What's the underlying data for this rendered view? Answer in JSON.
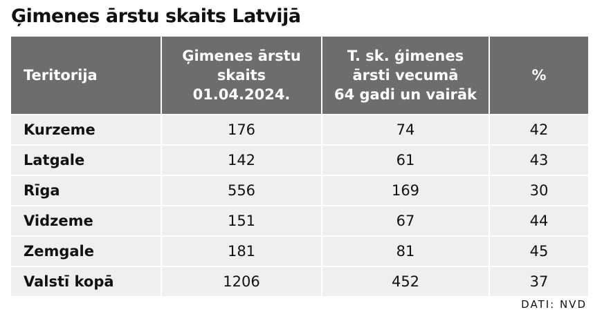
{
  "header": {
    "title": "Ģimenes ārstu skaits Latvijā"
  },
  "table": {
    "columns": [
      "Teritorija",
      "Ģimenes ārstu\nskaits\n01.04.2024.",
      "T. sk. ģimenes\nārsti vecumā\n64 gadi un vairāk",
      "%"
    ],
    "rows": [
      [
        "Kurzeme",
        176,
        74,
        42
      ],
      [
        "Latgale",
        142,
        61,
        43
      ],
      [
        "Rīga",
        556,
        169,
        30
      ],
      [
        "Vidzeme",
        151,
        67,
        44
      ],
      [
        "Zemgale",
        181,
        81,
        45
      ],
      [
        "Valstī kopā",
        1206,
        452,
        37
      ]
    ]
  },
  "footer": {
    "source": "DATI: NVD"
  }
}
